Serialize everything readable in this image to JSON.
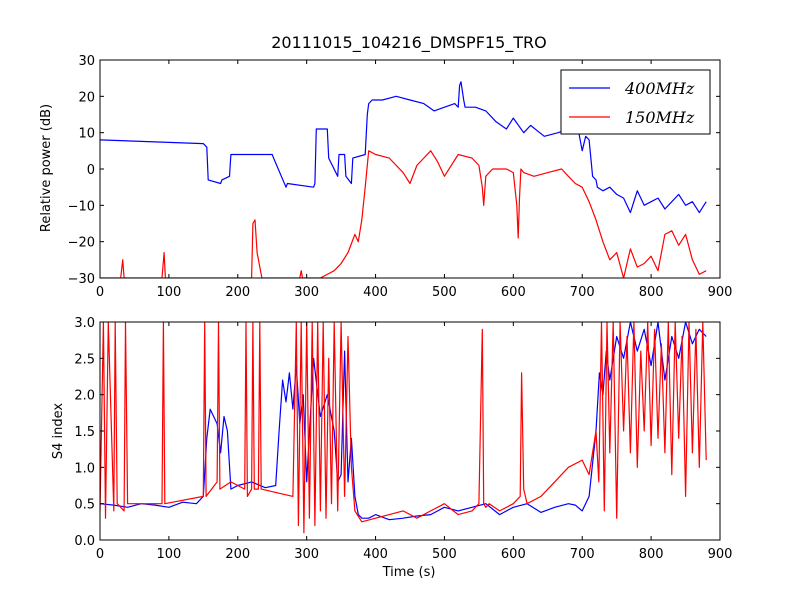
{
  "chart_data": [
    {
      "type": "line",
      "title": "20111015_104216_DMSPF15_TRO",
      "xlabel": "",
      "ylabel": "Relative power (dB)",
      "xlim": [
        0,
        900
      ],
      "ylim": [
        -30,
        30
      ],
      "x_ticks": [
        "0",
        "100",
        "200",
        "300",
        "400",
        "500",
        "600",
        "700",
        "800",
        "900"
      ],
      "y_ticks": [
        "−30",
        "−20",
        "−10",
        "0",
        "10",
        "20",
        "30"
      ],
      "legend_position": "top-right",
      "legend": [
        "400MHz",
        "150MHz"
      ],
      "series": [
        {
          "name": "400MHz",
          "color": "#0000ff",
          "x": [
            0,
            150,
            155,
            157,
            175,
            177,
            188,
            190,
            210,
            250,
            252,
            270,
            272,
            310,
            312,
            314,
            330,
            332,
            345,
            347,
            355,
            357,
            365,
            367,
            385,
            388,
            390,
            395,
            410,
            430,
            450,
            470,
            485,
            500,
            515,
            520,
            522,
            524,
            528,
            530,
            545,
            560,
            575,
            590,
            600,
            615,
            625,
            645,
            665,
            680,
            695,
            700,
            705,
            710,
            713,
            715,
            720,
            722,
            730,
            740,
            750,
            760,
            770,
            780,
            790,
            800,
            810,
            820,
            830,
            840,
            850,
            860,
            870,
            880
          ],
          "y": [
            8,
            7,
            6,
            -3,
            -4,
            -3,
            -2,
            4,
            4,
            4,
            3,
            -5,
            -4,
            -5,
            -4,
            11,
            11,
            3,
            -2,
            4,
            4,
            -2,
            -4,
            3,
            4,
            15,
            18,
            19,
            19,
            20,
            19,
            18,
            16,
            17,
            18,
            17,
            23,
            24,
            19,
            17,
            17,
            16,
            13,
            11,
            14,
            10,
            12,
            9,
            10,
            11,
            10,
            5,
            9,
            8,
            2,
            -2,
            -3,
            -5,
            -6,
            -5,
            -7,
            -8,
            -12,
            -6,
            -10,
            -9,
            -8,
            -11,
            -9,
            -7,
            -10,
            -9,
            -12,
            -9
          ]
        },
        {
          "name": "150MHz",
          "color": "#ff0000",
          "x": [
            0,
            30,
            33,
            35,
            90,
            93,
            95,
            150,
            215,
            220,
            222,
            225,
            228,
            235,
            290,
            292,
            294,
            300,
            320,
            330,
            340,
            350,
            360,
            370,
            375,
            380,
            385,
            390,
            400,
            420,
            430,
            440,
            450,
            460,
            470,
            480,
            490,
            500,
            520,
            540,
            550,
            555,
            557,
            560,
            565,
            570,
            590,
            600,
            605,
            607,
            609,
            611,
            615,
            630,
            650,
            670,
            680,
            690,
            700,
            710,
            720,
            730,
            740,
            750,
            760,
            770,
            780,
            790,
            800,
            810,
            820,
            830,
            840,
            850,
            860,
            870,
            880
          ],
          "y": [
            -30,
            -30,
            -25,
            -30,
            -30,
            -23,
            -30,
            -30,
            -30,
            -30,
            -15,
            -14,
            -23,
            -30,
            -30,
            -28,
            -30,
            -30,
            -30,
            -29,
            -28,
            -26,
            -23,
            -18,
            -20,
            -14,
            -5,
            5,
            4,
            3,
            1,
            -1,
            -4,
            1,
            3,
            5,
            2,
            -2,
            4,
            3,
            1,
            -5,
            -10,
            -2,
            -1,
            0,
            0,
            -1,
            -10,
            -19,
            -8,
            0,
            -1,
            -2,
            -1,
            0,
            -2,
            -4,
            -5,
            -9,
            -14,
            -20,
            -25,
            -23,
            -30,
            -22,
            -27,
            -26,
            -24,
            -28,
            -18,
            -17,
            -21,
            -18,
            -25,
            -29,
            -28
          ]
        }
      ]
    },
    {
      "type": "line",
      "title": "",
      "xlabel": "Time (s)",
      "ylabel": "S4 index",
      "xlim": [
        0,
        900
      ],
      "ylim": [
        0,
        3
      ],
      "x_ticks": [
        "0",
        "100",
        "200",
        "300",
        "400",
        "500",
        "600",
        "700",
        "800",
        "900"
      ],
      "y_ticks": [
        "0.0",
        "0.5",
        "1.0",
        "1.5",
        "2.0",
        "2.5",
        "3.0"
      ],
      "series": [
        {
          "name": "",
          "color": "#0000ff",
          "x": [
            0,
            20,
            40,
            60,
            80,
            100,
            120,
            140,
            150,
            155,
            160,
            170,
            175,
            180,
            185,
            190,
            200,
            220,
            240,
            255,
            260,
            265,
            270,
            275,
            280,
            285,
            290,
            295,
            300,
            310,
            320,
            330,
            340,
            345,
            350,
            355,
            360,
            365,
            370,
            375,
            380,
            390,
            400,
            420,
            440,
            460,
            480,
            500,
            520,
            540,
            560,
            580,
            600,
            620,
            640,
            660,
            680,
            690,
            700,
            710,
            720,
            725,
            730,
            735,
            740,
            750,
            760,
            770,
            780,
            790,
            800,
            810,
            820,
            830,
            840,
            850,
            860,
            870,
            880
          ],
          "y": [
            0.5,
            0.48,
            0.45,
            0.5,
            0.48,
            0.45,
            0.52,
            0.5,
            0.6,
            1.4,
            1.8,
            1.6,
            1.2,
            1.7,
            1.5,
            0.7,
            0.75,
            0.8,
            0.72,
            0.75,
            1.5,
            2.2,
            1.9,
            2.3,
            1.8,
            2.4,
            1.6,
            2.0,
            0.8,
            2.5,
            1.7,
            2.0,
            1.5,
            0.8,
            0.9,
            2.6,
            0.8,
            1.4,
            0.6,
            0.35,
            0.3,
            0.3,
            0.35,
            0.28,
            0.3,
            0.33,
            0.35,
            0.45,
            0.4,
            0.45,
            0.5,
            0.35,
            0.45,
            0.5,
            0.38,
            0.45,
            0.5,
            0.48,
            0.4,
            0.6,
            1.5,
            2.3,
            2.0,
            2.6,
            2.2,
            2.8,
            2.5,
            3.0,
            2.6,
            2.9,
            2.4,
            3.0,
            2.2,
            2.8,
            2.5,
            3.0,
            2.7,
            2.9,
            2.8
          ]
        },
        {
          "name": "",
          "color": "#ff0000",
          "x": [
            0,
            5,
            8,
            12,
            20,
            22,
            25,
            35,
            37,
            40,
            90,
            92,
            94,
            150,
            152,
            154,
            170,
            172,
            174,
            190,
            210,
            212,
            214,
            220,
            222,
            224,
            230,
            232,
            234,
            280,
            285,
            288,
            292,
            296,
            300,
            304,
            308,
            312,
            316,
            320,
            324,
            328,
            332,
            336,
            340,
            345,
            350,
            355,
            360,
            365,
            370,
            380,
            400,
            420,
            440,
            460,
            480,
            500,
            520,
            540,
            550,
            555,
            557,
            560,
            565,
            580,
            600,
            610,
            612,
            615,
            620,
            640,
            660,
            680,
            700,
            710,
            720,
            724,
            728,
            732,
            736,
            740,
            745,
            750,
            755,
            760,
            765,
            770,
            775,
            780,
            785,
            790,
            795,
            800,
            805,
            810,
            815,
            820,
            825,
            830,
            835,
            840,
            845,
            850,
            855,
            860,
            865,
            870,
            875,
            880
          ],
          "y": [
            0.4,
            3.0,
            0.3,
            3.0,
            0.4,
            3.0,
            0.5,
            0.4,
            3.0,
            0.5,
            0.5,
            3.0,
            0.5,
            0.6,
            3.0,
            0.6,
            0.8,
            3.0,
            0.7,
            0.8,
            0.7,
            3.0,
            0.6,
            0.7,
            3.0,
            0.7,
            0.7,
            3.0,
            0.7,
            0.6,
            3.0,
            0.2,
            3.0,
            0.1,
            3.0,
            0.3,
            3.0,
            0.2,
            3.0,
            0.4,
            3.0,
            0.3,
            2.5,
            0.5,
            3.0,
            0.4,
            3.0,
            0.6,
            2.8,
            1.0,
            0.4,
            0.25,
            0.3,
            0.35,
            0.4,
            0.3,
            0.4,
            0.5,
            0.35,
            0.4,
            0.5,
            2.9,
            0.5,
            0.45,
            0.5,
            0.4,
            0.5,
            0.6,
            2.3,
            0.7,
            0.5,
            0.6,
            0.8,
            1.0,
            1.1,
            0.9,
            1.5,
            0.8,
            3.0,
            0.4,
            3.0,
            1.2,
            3.0,
            0.3,
            3.0,
            1.5,
            2.8,
            1.2,
            3.0,
            1.0,
            2.6,
            1.5,
            3.0,
            1.3,
            2.9,
            1.4,
            2.7,
            1.2,
            3.0,
            0.9,
            3.0,
            1.4,
            2.8,
            0.6,
            3.0,
            1.2,
            2.9,
            1.0,
            3.0,
            1.1
          ]
        }
      ]
    }
  ]
}
